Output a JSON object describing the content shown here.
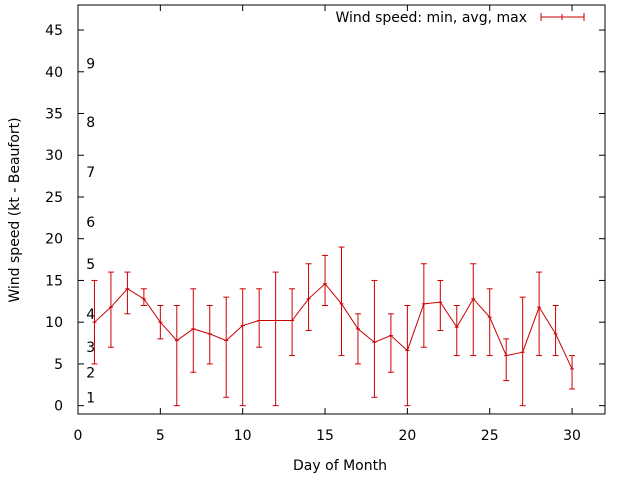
{
  "chart_data": {
    "type": "line",
    "title": "",
    "xlabel": "Day of Month",
    "ylabel": "Wind speed (kt - Beaufort)",
    "xlim": [
      0,
      32
    ],
    "ylim": [
      -1,
      48
    ],
    "x_ticks": [
      0,
      5,
      10,
      15,
      20,
      25,
      30
    ],
    "y_ticks": [
      0,
      5,
      10,
      15,
      20,
      25,
      30,
      35,
      40,
      45
    ],
    "beaufort_labels": [
      {
        "label": "1",
        "value": 1
      },
      {
        "label": "2",
        "value": 4
      },
      {
        "label": "3",
        "value": 7
      },
      {
        "label": "4",
        "value": 11
      },
      {
        "label": "5",
        "value": 17
      },
      {
        "label": "6",
        "value": 22
      },
      {
        "label": "7",
        "value": 28
      },
      {
        "label": "8",
        "value": 34
      },
      {
        "label": "9",
        "value": 41
      }
    ],
    "legend_position": "top-right",
    "series": [
      {
        "name": "Wind speed: min, avg, max",
        "color": "#cc0000",
        "points": [
          {
            "x": 1,
            "y": 10,
            "min": 5,
            "max": 15
          },
          {
            "x": 2,
            "y": 11.8,
            "min": 7,
            "max": 16
          },
          {
            "x": 3,
            "y": 14,
            "min": 11,
            "max": 16
          },
          {
            "x": 4,
            "y": 12.8,
            "min": 12,
            "max": 14
          },
          {
            "x": 5,
            "y": 10,
            "min": 8,
            "max": 12
          },
          {
            "x": 6,
            "y": 7.8,
            "min": 0,
            "max": 12
          },
          {
            "x": 7,
            "y": 9.2,
            "min": 4,
            "max": 14
          },
          {
            "x": 8,
            "y": 8.6,
            "min": 5,
            "max": 12
          },
          {
            "x": 9,
            "y": 7.8,
            "min": 1,
            "max": 13
          },
          {
            "x": 10,
            "y": 9.6,
            "min": 0,
            "max": 14
          },
          {
            "x": 11,
            "y": 10.2,
            "min": 7,
            "max": 14
          },
          {
            "x": 12,
            "y": 10.2,
            "min": 0,
            "max": 16
          },
          {
            "x": 13,
            "y": 10.2,
            "min": 6,
            "max": 14
          },
          {
            "x": 14,
            "y": 12.8,
            "min": 9,
            "max": 17
          },
          {
            "x": 15,
            "y": 14.6,
            "min": 12,
            "max": 18
          },
          {
            "x": 16,
            "y": 12.2,
            "min": 6,
            "max": 19
          },
          {
            "x": 17,
            "y": 9.2,
            "min": 5,
            "max": 11
          },
          {
            "x": 18,
            "y": 7.6,
            "min": 1,
            "max": 15
          },
          {
            "x": 19,
            "y": 8.4,
            "min": 4,
            "max": 11
          },
          {
            "x": 20,
            "y": 6.6,
            "min": 0,
            "max": 12
          },
          {
            "x": 21,
            "y": 12.2,
            "min": 7,
            "max": 17
          },
          {
            "x": 22,
            "y": 12.4,
            "min": 9,
            "max": 15
          },
          {
            "x": 23,
            "y": 9.4,
            "min": 6,
            "max": 12
          },
          {
            "x": 24,
            "y": 12.8,
            "min": 6,
            "max": 17
          },
          {
            "x": 25,
            "y": 10.6,
            "min": 6,
            "max": 14
          },
          {
            "x": 26,
            "y": 6,
            "min": 3,
            "max": 8
          },
          {
            "x": 27,
            "y": 6.4,
            "min": 0,
            "max": 13
          },
          {
            "x": 28,
            "y": 11.8,
            "min": 6,
            "max": 16
          },
          {
            "x": 29,
            "y": 8.6,
            "min": 6,
            "max": 12
          },
          {
            "x": 30,
            "y": 4.4,
            "min": 2,
            "max": 6
          }
        ]
      }
    ]
  }
}
